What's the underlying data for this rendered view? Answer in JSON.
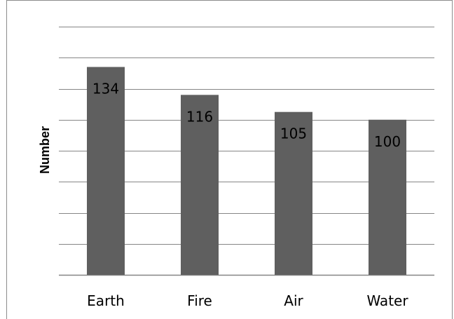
{
  "chart_data": {
    "type": "bar",
    "title": "",
    "xlabel": "",
    "ylabel": "Number",
    "categories": [
      "Earth",
      "Fire",
      "Air",
      "Water"
    ],
    "values": [
      134,
      116,
      105,
      100
    ],
    "ylim": [
      0,
      160
    ],
    "ytick_step": 20,
    "grid": true,
    "data_labels": true,
    "legend": "none",
    "colors": {
      "bar": "#5f5f5f",
      "grid": "#868686",
      "frame": "#8c8c8c"
    }
  }
}
